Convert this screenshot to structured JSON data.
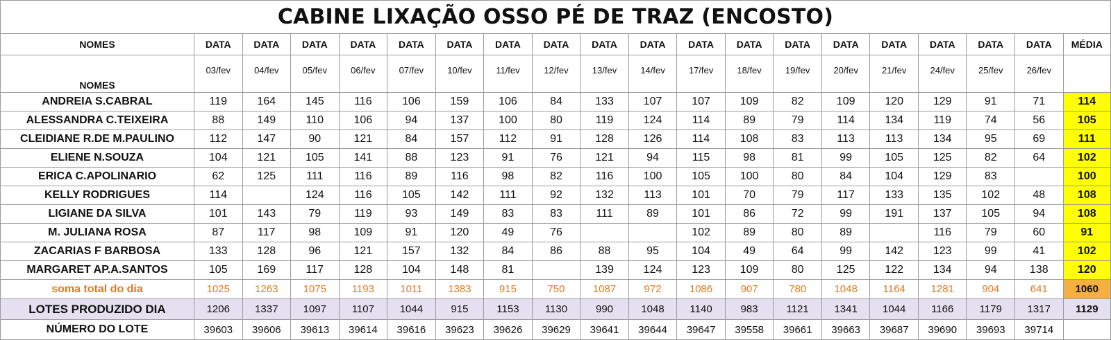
{
  "title": "CABINE LIXAÇÃO OSSO PÉ DE TRAZ (ENCOSTO)",
  "header": {
    "names_label": "NOMES",
    "data_label": "DATA",
    "media_label": "MÉDIA",
    "dates": [
      "03/fev",
      "04/fev",
      "05/fev",
      "06/fev",
      "07/fev",
      "10/fev",
      "11/fev",
      "12/fev",
      "13/fev",
      "14/fev",
      "17/fev",
      "18/fev",
      "19/fev",
      "20/fev",
      "21/fev",
      "24/fev",
      "25/fev",
      "26/fev"
    ]
  },
  "rows": [
    {
      "name": "ANDREIA S.CABRAL",
      "values": [
        "119",
        "164",
        "145",
        "116",
        "106",
        "159",
        "106",
        "84",
        "133",
        "107",
        "107",
        "109",
        "82",
        "109",
        "120",
        "129",
        "91",
        "71"
      ],
      "media": "114"
    },
    {
      "name": "ALESSANDRA C.TEIXEIRA",
      "values": [
        "88",
        "149",
        "110",
        "106",
        "94",
        "137",
        "100",
        "80",
        "119",
        "124",
        "114",
        "89",
        "79",
        "114",
        "134",
        "119",
        "74",
        "56"
      ],
      "media": "105"
    },
    {
      "name": "CLEIDIANE R.DE M.PAULINO",
      "values": [
        "112",
        "147",
        "90",
        "121",
        "84",
        "157",
        "112",
        "91",
        "128",
        "126",
        "114",
        "108",
        "83",
        "113",
        "113",
        "134",
        "95",
        "69"
      ],
      "media": "111"
    },
    {
      "name": "ELIENE N.SOUZA",
      "values": [
        "104",
        "121",
        "105",
        "141",
        "88",
        "123",
        "91",
        "76",
        "121",
        "94",
        "115",
        "98",
        "81",
        "99",
        "105",
        "125",
        "82",
        "64"
      ],
      "media": "102"
    },
    {
      "name": "ERICA C.APOLINARIO",
      "values": [
        "62",
        "125",
        "111",
        "116",
        "89",
        "116",
        "98",
        "82",
        "116",
        "100",
        "105",
        "100",
        "80",
        "84",
        "104",
        "129",
        "83",
        ""
      ],
      "media": "100"
    },
    {
      "name": "KELLY RODRIGUES",
      "values": [
        "114",
        "",
        "124",
        "116",
        "105",
        "142",
        "111",
        "92",
        "132",
        "113",
        "101",
        "70",
        "79",
        "117",
        "133",
        "135",
        "102",
        "48"
      ],
      "media": "108"
    },
    {
      "name": "LIGIANE DA SILVA",
      "values": [
        "101",
        "143",
        "79",
        "119",
        "93",
        "149",
        "83",
        "83",
        "111",
        "89",
        "101",
        "86",
        "72",
        "99",
        "191",
        "137",
        "105",
        "94"
      ],
      "media": "108"
    },
    {
      "name": "M. JULIANA ROSA",
      "values": [
        "87",
        "117",
        "98",
        "109",
        "91",
        "120",
        "49",
        "76",
        "",
        "",
        "102",
        "89",
        "80",
        "89",
        "",
        "116",
        "79",
        "60"
      ],
      "media": "91"
    },
    {
      "name": "ZACARIAS F BARBOSA",
      "values": [
        "133",
        "128",
        "96",
        "121",
        "157",
        "132",
        "84",
        "86",
        "88",
        "95",
        "104",
        "49",
        "64",
        "99",
        "142",
        "123",
        "99",
        "41"
      ],
      "media": "102"
    },
    {
      "name": "MARGARET AP.A.SANTOS",
      "values": [
        "105",
        "169",
        "117",
        "128",
        "104",
        "148",
        "81",
        "",
        "139",
        "124",
        "123",
        "109",
        "80",
        "125",
        "122",
        "134",
        "94",
        "138"
      ],
      "media": "120"
    }
  ],
  "soma": {
    "name": "soma total  do dia",
    "values": [
      "1025",
      "1263",
      "1075",
      "1193",
      "1011",
      "1383",
      "915",
      "750",
      "1087",
      "972",
      "1086",
      "907",
      "780",
      "1048",
      "1164",
      "1281",
      "904",
      "641"
    ],
    "media": "1060"
  },
  "lotes": {
    "name": "LOTES PRODUZIDO DIA",
    "values": [
      "1206",
      "1337",
      "1097",
      "1107",
      "1044",
      "915",
      "1153",
      "1130",
      "990",
      "1048",
      "1140",
      "983",
      "1121",
      "1341",
      "1044",
      "1166",
      "1179",
      "1317"
    ],
    "media": "1129"
  },
  "numero": {
    "name": "NÚMERO DO LOTE",
    "values": [
      "39603",
      "39606",
      "39613",
      "39614",
      "39616",
      "39623",
      "39626",
      "39629",
      "39641",
      "39644",
      "39647",
      "39558",
      "39661",
      "39663",
      "39687",
      "39690",
      "39693",
      "39714"
    ],
    "media": ""
  },
  "colors": {
    "media_yellow": "#ffff00",
    "media_orange": "#f4b041",
    "soma_text": "#e07a1f",
    "lotes_bg": "#e4e0f0"
  }
}
